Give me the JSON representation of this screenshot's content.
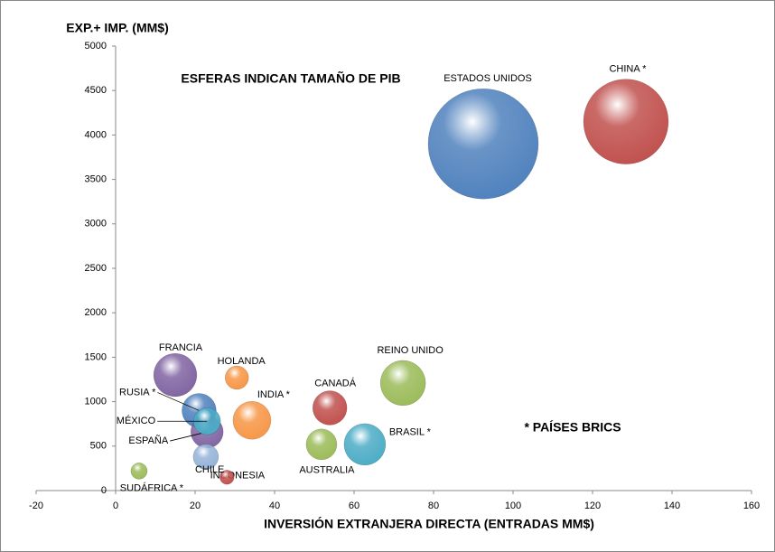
{
  "chart_data": {
    "type": "bubble",
    "annotations": [
      "ESFERAS INDICAN TAMAÑO DE PIB",
      "* PAÍSES BRICS"
    ],
    "x_label": "INVERSIÓN EXTRANJERA DIRECTA (ENTRADAS MM$)",
    "y_label": "EXP.+ IMP. (MM$)",
    "xlim": [
      -20,
      160
    ],
    "xticks": [
      -20,
      0,
      20,
      40,
      60,
      80,
      100,
      120,
      140,
      160
    ],
    "ylim": [
      0,
      5000
    ],
    "yticks": [
      0,
      500,
      1000,
      1500,
      2000,
      2500,
      3000,
      3500,
      4000,
      4500,
      5000
    ],
    "series": [
      {
        "name": "ESTADOS UNIDOS",
        "color": "#4f81bd",
        "x": 92.5,
        "y": 3900,
        "size": 15000
      },
      {
        "name": "CHINA *",
        "color": "#c0504d",
        "x": 128.4,
        "y": 4150,
        "size": 8900
      },
      {
        "name": "FRANCIA",
        "color": "#8064a2",
        "x": 15,
        "y": 1300,
        "size": 2300
      },
      {
        "name": "HOLANDA",
        "color": "#f79646",
        "x": 30.5,
        "y": 1270,
        "size": 680
      },
      {
        "name": "RUSIA *",
        "color": "#4f81bd",
        "x": 21,
        "y": 900,
        "size": 1450
      },
      {
        "name": "ESPAÑA",
        "color": "#8064a2",
        "x": 23,
        "y": 660,
        "size": 1300
      },
      {
        "name": "MÉXICO",
        "color": "#4bacc6",
        "x": 23,
        "y": 780,
        "size": 900
      },
      {
        "name": "INDIA *",
        "color": "#f79646",
        "x": 34.3,
        "y": 790,
        "size": 1780
      },
      {
        "name": "INDONESIA",
        "color": "#95b3d7",
        "x": 22.7,
        "y": 380,
        "size": 790
      },
      {
        "name": "SUDÁFRICA *",
        "color": "#9bbb59",
        "x": 5.9,
        "y": 220,
        "size": 330
      },
      {
        "name": "CHILE",
        "color": "#c0504d",
        "x": 28,
        "y": 150,
        "size": 250
      },
      {
        "name": "CANADÁ",
        "color": "#c0504d",
        "x": 53.9,
        "y": 930,
        "size": 1450
      },
      {
        "name": "AUSTRALIA",
        "color": "#9bbb59",
        "x": 51.8,
        "y": 520,
        "size": 1170
      },
      {
        "name": "BRASIL *",
        "color": "#4bacc6",
        "x": 62.7,
        "y": 520,
        "size": 2130
      },
      {
        "name": "REINO UNIDO",
        "color": "#9bbb59",
        "x": 72.3,
        "y": 1210,
        "size": 2520
      }
    ]
  }
}
